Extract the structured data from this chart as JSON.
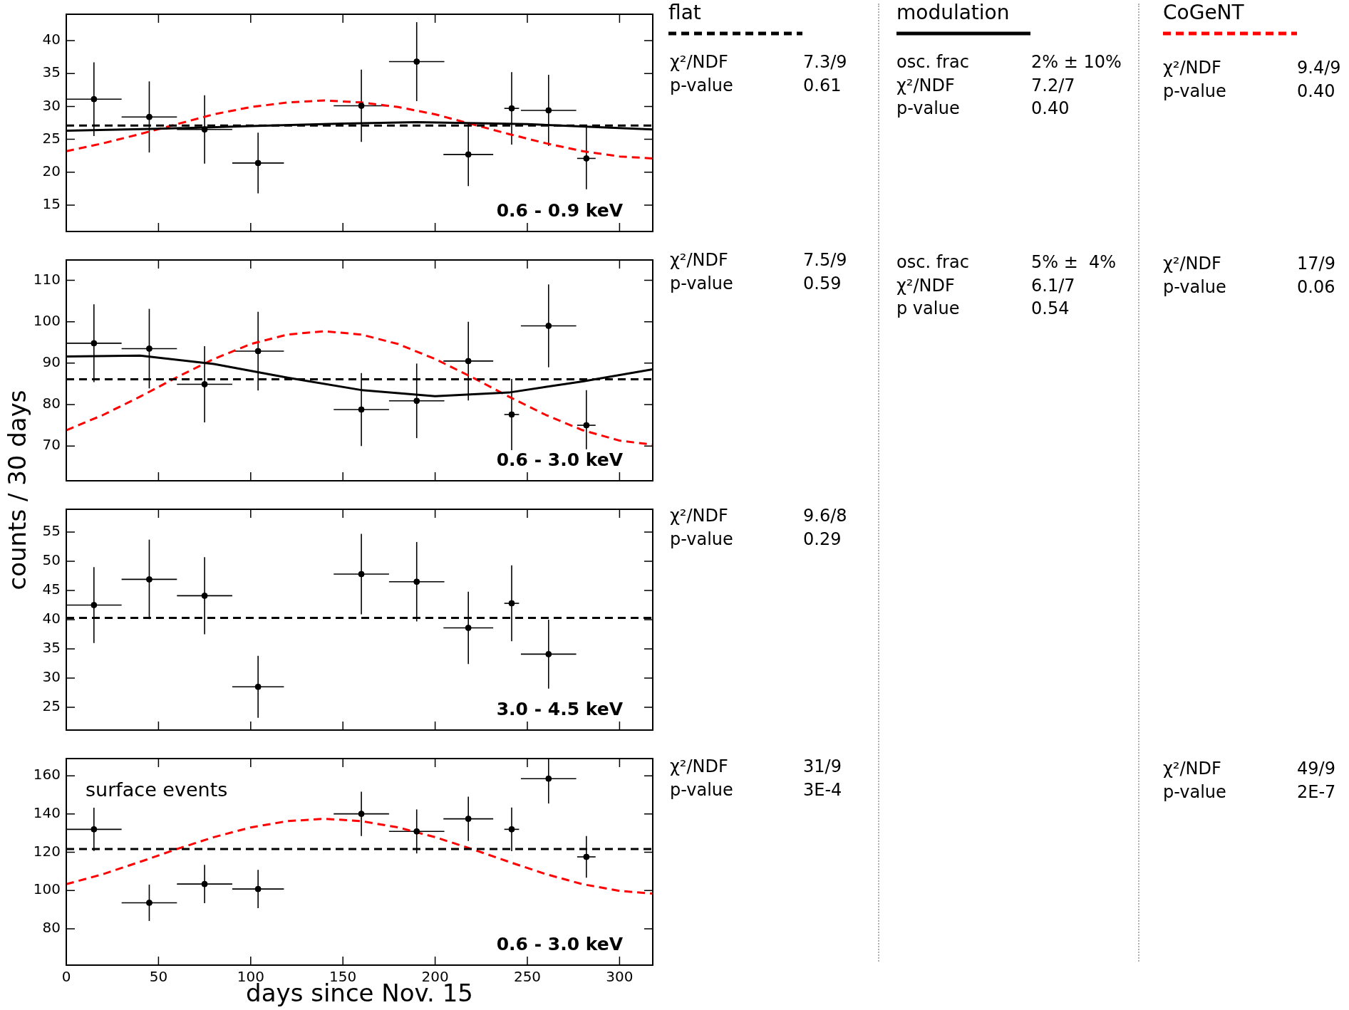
{
  "chart_data": [
    {
      "type": "scatter",
      "xlim": [
        0,
        318
      ],
      "xticks": [
        0,
        50,
        100,
        150,
        200,
        250,
        300
      ],
      "ylim": [
        11,
        44
      ],
      "yticks": [
        15,
        20,
        25,
        30,
        35,
        40
      ],
      "tick_labels": "y",
      "grid": false,
      "legend": "right",
      "x": [
        15,
        45,
        75,
        104,
        160,
        190,
        218,
        241.5,
        261.5,
        282
      ],
      "series": [
        {
          "type": "scatter",
          "color": "#000000",
          "marker": "circle",
          "values": [
            31.1,
            28.4,
            26.5,
            21.4,
            30.1,
            36.8,
            22.7,
            29.7,
            29.4,
            22.1
          ],
          "errors": [
            5.6,
            5.4,
            5.2,
            4.6,
            5.5,
            6,
            4.8,
            5.5,
            5.4,
            4.7
          ],
          "xerrors": [
            15,
            15,
            15,
            14,
            15,
            15,
            13.5,
            4,
            15,
            5
          ]
        },
        {
          "type": "line",
          "name": "flat",
          "color": "#000000",
          "line_style": "dashed",
          "marker": "none",
          "x": [
            0,
            318
          ],
          "values": [
            27.1,
            27.1
          ]
        },
        {
          "type": "line",
          "name": "modulation",
          "color": "#000000",
          "line_style": "solid",
          "marker": "none",
          "x": [
            0,
            50,
            100,
            150,
            190,
            250,
            318
          ],
          "values": [
            26.3,
            26.6,
            27.0,
            27.4,
            27.6,
            27.3,
            26.5
          ]
        },
        {
          "type": "line",
          "name": "CoGeNT",
          "color": "#ff0000",
          "line_style": "dashed",
          "marker": "none",
          "x": [
            0,
            20,
            40,
            60,
            80,
            100,
            120,
            140,
            160,
            180,
            200,
            220,
            240,
            260,
            280,
            300,
            318
          ],
          "values": [
            23.2,
            24.4,
            25.8,
            27.3,
            28.8,
            29.9,
            30.6,
            30.9,
            30.6,
            29.9,
            28.8,
            27.3,
            25.8,
            24.4,
            23.2,
            22.4,
            22.1
          ]
        }
      ],
      "annotations": [
        "0.6 - 0.9 keV",
        "χ²/NDF",
        "7.3/9",
        "p-value",
        "0.61",
        "osc. frac",
        "2% ± 10%",
        "χ²/NDF",
        "7.2/7",
        "p-value",
        "0.40",
        "χ²/NDF",
        "9.4/9",
        "p-value",
        "0.40"
      ]
    },
    {
      "type": "scatter",
      "xlim": [
        0,
        318
      ],
      "xticks": [
        0,
        50,
        100,
        150,
        200,
        250,
        300
      ],
      "ylim": [
        61.6,
        114.9
      ],
      "yticks": [
        70,
        80,
        90,
        100,
        110
      ],
      "tick_labels": "y",
      "grid": false,
      "ylabel": "counts / 30 days",
      "x": [
        15,
        45,
        75,
        104,
        160,
        190,
        218,
        241.5,
        261.5,
        282
      ],
      "series": [
        {
          "type": "scatter",
          "color": "#000000",
          "marker": "circle",
          "values": [
            94.8,
            93.5,
            84.9,
            92.9,
            78.8,
            80.9,
            90.5,
            77.6,
            99.0,
            75.0
          ],
          "errors": [
            9.4,
            9.6,
            9.2,
            9.5,
            8.8,
            9,
            9.5,
            8.6,
            10,
            [
              69.2,
              83.5
            ]
          ],
          "xerrors": [
            15,
            15,
            15,
            14,
            15,
            15,
            13.5,
            4,
            15,
            5
          ]
        },
        {
          "type": "line",
          "color": "#000000",
          "line_style": "dashed",
          "marker": "none",
          "x": [
            0,
            318
          ],
          "values": [
            86.1,
            86.1
          ]
        },
        {
          "type": "line",
          "color": "#000000",
          "line_style": "solid",
          "marker": "none",
          "x": [
            0,
            40,
            80,
            120,
            160,
            200,
            240,
            280,
            318
          ],
          "values": [
            91.6,
            91.8,
            89.8,
            86.5,
            83.5,
            82.0,
            82.9,
            85.6,
            88.5
          ]
        },
        {
          "type": "line",
          "color": "#ff0000",
          "line_style": "dashed",
          "marker": "none",
          "x": [
            0,
            20,
            40,
            60,
            80,
            100,
            120,
            140,
            160,
            180,
            200,
            220,
            240,
            260,
            280,
            300,
            318
          ],
          "values": [
            73.8,
            77.5,
            81.9,
            86.6,
            91.0,
            94.6,
            96.9,
            97.7,
            96.9,
            94.6,
            91.0,
            86.6,
            81.9,
            77.5,
            73.8,
            71.3,
            70.3
          ]
        }
      ],
      "annotations": [
        "0.6 - 3.0 keV",
        "χ²/NDF",
        "7.5/9",
        "p-value",
        "0.59",
        "osc. frac",
        "5% ±  4%",
        "χ²/NDF",
        "6.1/7",
        "p value",
        "0.54",
        "χ²/NDF",
        "17/9",
        "p-value",
        "0.06"
      ]
    },
    {
      "type": "scatter",
      "xlim": [
        0,
        318
      ],
      "xticks": [
        0,
        50,
        100,
        150,
        200,
        250,
        300
      ],
      "ylim": [
        21.1,
        58.9
      ],
      "yticks": [
        25,
        30,
        35,
        40,
        45,
        50,
        55
      ],
      "tick_labels": "y",
      "grid": false,
      "x": [
        15,
        45,
        75,
        104,
        160,
        190,
        218,
        241.5,
        261.5
      ],
      "series": [
        {
          "type": "scatter",
          "color": "#000000",
          "marker": "circle",
          "values": [
            42.5,
            46.9,
            44.1,
            28.5,
            47.8,
            46.5,
            38.6,
            42.8,
            34.1
          ],
          "errors": [
            6.5,
            6.8,
            6.6,
            5.3,
            6.9,
            6.8,
            6.2,
            6.5,
            5.9
          ],
          "xerrors": [
            15,
            15,
            15,
            14,
            15,
            15,
            13.5,
            4,
            15
          ]
        },
        {
          "type": "line",
          "color": "#000000",
          "line_style": "dashed",
          "marker": "none",
          "x": [
            0,
            318
          ],
          "values": [
            40.3,
            40.3
          ]
        }
      ],
      "annotations": [
        "3.0 - 4.5 keV",
        "χ²/NDF",
        "9.6/8",
        "p-value",
        "0.29"
      ]
    },
    {
      "type": "scatter",
      "xlim": [
        0,
        318
      ],
      "xticks": [
        0,
        50,
        100,
        150,
        200,
        250,
        300
      ],
      "ylim": [
        61,
        169
      ],
      "yticks": [
        80,
        100,
        120,
        140,
        160
      ],
      "grid": false,
      "xlabel": "days since Nov. 15",
      "x": [
        15,
        45,
        75,
        104,
        160,
        190,
        218,
        241.5,
        261.5,
        282
      ],
      "series": [
        {
          "type": "scatter",
          "color": "#000000",
          "marker": "circle",
          "values": [
            132.0,
            93.6,
            103.4,
            100.8,
            140.1,
            130.9,
            137.5,
            132.0,
            158.5,
            117.6
          ],
          "errors": [
            11.3,
            9.5,
            10,
            10,
            11.6,
            11.5,
            11.6,
            11.4,
            [
              145.5,
              169
            ],
            10.9
          ],
          "xerrors": [
            15,
            15,
            15,
            14,
            15,
            15,
            13.5,
            4,
            15,
            5
          ]
        },
        {
          "type": "line",
          "color": "#000000",
          "line_style": "dashed",
          "marker": "none",
          "x": [
            0,
            318
          ],
          "values": [
            121.7,
            121.7
          ]
        },
        {
          "type": "line",
          "color": "#ff0000",
          "line_style": "dashed",
          "marker": "none",
          "x": [
            0,
            20,
            40,
            60,
            80,
            100,
            120,
            140,
            160,
            180,
            200,
            220,
            240,
            260,
            280,
            300,
            318
          ],
          "values": [
            103.3,
            108.6,
            115.0,
            121.7,
            127.9,
            133.0,
            136.3,
            137.5,
            136.3,
            133.0,
            127.9,
            121.7,
            115.0,
            108.6,
            103.3,
            99.8,
            98.4
          ]
        }
      ],
      "annotations": [
        "0.6 - 3.0 keV",
        "surface events",
        "χ²/NDF",
        "31/9",
        "p-value",
        "3E-4",
        "χ²/NDF",
        "49/9",
        "p-value",
        "2E-7"
      ]
    }
  ]
}
